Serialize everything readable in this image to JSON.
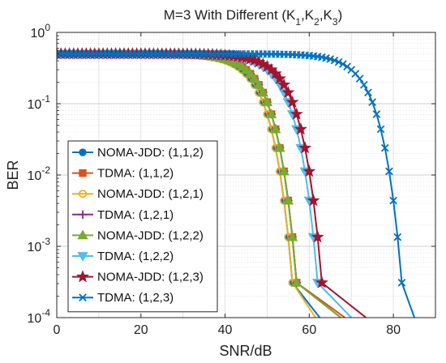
{
  "chart_data": {
    "type": "line",
    "title": "M=3 With Different (K",
    "title_parts": {
      "prefix": "M=3 With Different (K",
      "sub1": "1",
      "sep1": ",K",
      "sub2": "2",
      "sep2": ",K",
      "sub3": "3",
      "suffix": ")"
    },
    "xlabel": "SNR/dB",
    "ylabel": "BER",
    "xlim": [
      0,
      90
    ],
    "ylim": [
      0.0001,
      1
    ],
    "yscale": "log",
    "grid": true,
    "legend_position": "lower-left",
    "xticks": [
      "0",
      "20",
      "40",
      "60",
      "80"
    ],
    "yticks": [
      {
        "base": "10",
        "exp": "0"
      },
      {
        "base": "10",
        "exp": "-1"
      },
      {
        "base": "10",
        "exp": "-2"
      },
      {
        "base": "10",
        "exp": "-3"
      },
      {
        "base": "10",
        "exp": "-4"
      }
    ],
    "series": [
      {
        "name": "NOMA-JDD: (1,1,2)",
        "color": "#0072BD",
        "marker": "circle-filled",
        "ln_a": 6.7,
        "s0": 47,
        "width": 4.5
      },
      {
        "name": "TDMA: (1,1,2)",
        "color": "#D95319",
        "marker": "square-filled",
        "ln_a": 8.65,
        "s0": 48,
        "width": 4.5
      },
      {
        "name": "NOMA-JDD: (1,2,1)",
        "color": "#EDB120",
        "marker": "circle-open",
        "ln_a": 6.35,
        "s0": 47,
        "width": 4.5
      },
      {
        "name": "TDMA: (1,2,1)",
        "color": "#7E2F8E",
        "marker": "plus",
        "ln_a": 8.3,
        "s0": 48,
        "width": 4.5
      },
      {
        "name": "NOMA-JDD: (1,2,2)",
        "color": "#77AC30",
        "marker": "triangle-up",
        "ln_a": 8.35,
        "s0": 48,
        "width": 4.5
      },
      {
        "name": "TDMA: (1,2,2)",
        "color": "#4DBEEE",
        "marker": "triangle-down",
        "ln_a": 7.3,
        "s0": 53,
        "width": 4.5
      },
      {
        "name": "NOMA-JDD: (1,2,3)",
        "color": "#A2142F",
        "marker": "star",
        "ln_a": 7.65,
        "s0": 54,
        "width": 4.5
      },
      {
        "name": "TDMA: (1,2,3)",
        "color": "#0072BD",
        "marker": "x",
        "ln_a": 5.35,
        "s0": 73,
        "width": 4.5
      }
    ],
    "x_max_rendered": [
      62.5,
      68.5,
      61.5,
      67.5,
      67.5,
      70.0,
      73.5,
      85.0
    ],
    "x_step": 1
  }
}
